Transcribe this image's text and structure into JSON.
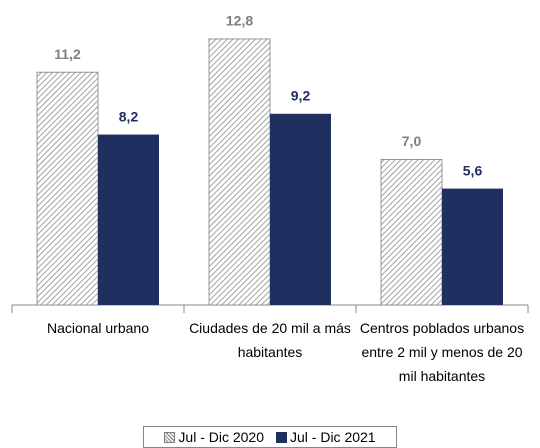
{
  "chart_data": {
    "type": "bar",
    "categories": [
      "Nacional urbano",
      "Ciudades de 20 mil a más habitantes",
      "Centros poblados urbanos entre 2 mil y menos de 20 mil habitantes"
    ],
    "series": [
      {
        "name": "Jul - Dic 2020",
        "color": "#7f7f7f",
        "pattern": "diagonal-hatch",
        "values": [
          11.2,
          12.8,
          7.0
        ],
        "value_labels": [
          "11,2",
          "12,8",
          "7,0"
        ]
      },
      {
        "name": "Jul - Dic 2021",
        "color": "#1f3060",
        "values": [
          8.2,
          9.2,
          5.6
        ],
        "value_labels": [
          "8,2",
          "9,2",
          "5,6"
        ]
      }
    ],
    "ylim": [
      0,
      14
    ],
    "legend": "bottom"
  }
}
